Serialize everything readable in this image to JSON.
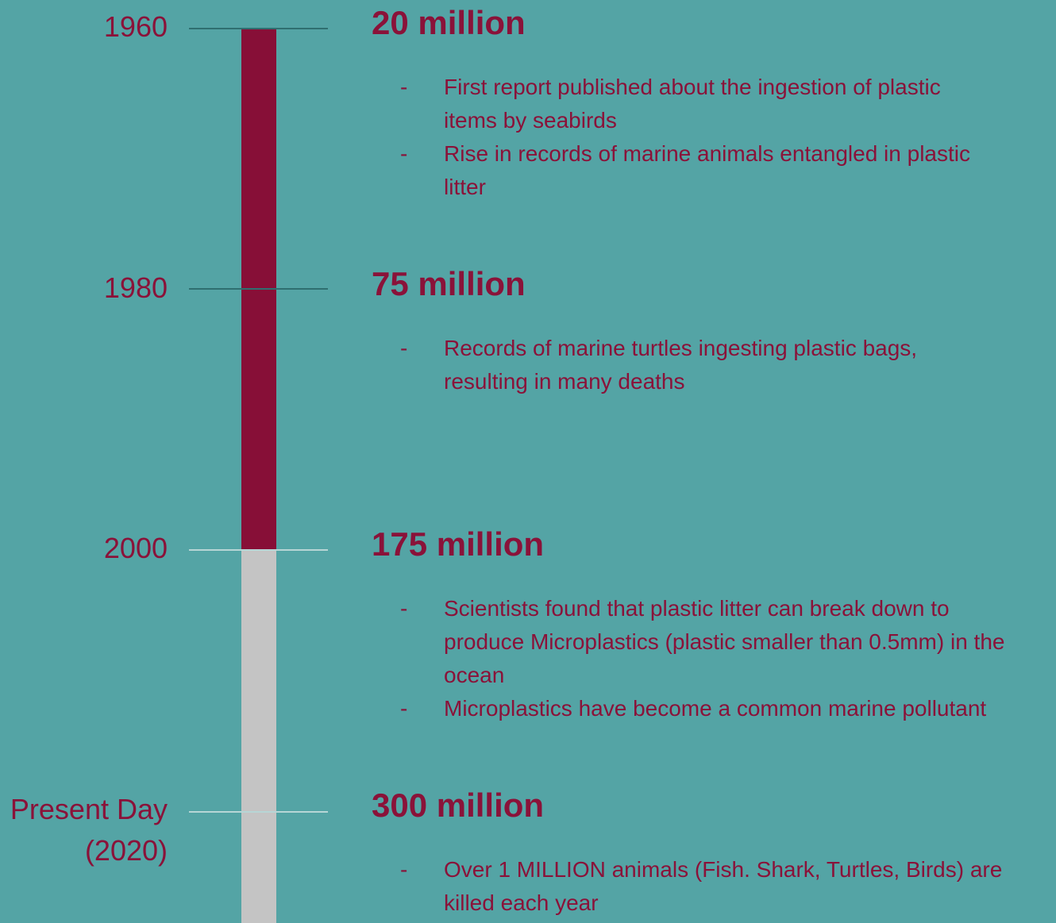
{
  "colors": {
    "background": "#54a4a5",
    "accent": "#870f37",
    "bar_past": "#870f37",
    "bar_present": "#c4c4c4",
    "tick_dark": "#2f6f70",
    "tick_light": "#b7d6d6"
  },
  "timeline": [
    {
      "year": "1960",
      "amount": "20 million",
      "items": [
        "First report published about the ingestion of plastic items by seabirds",
        "Rise in records of marine animals entangled in plastic litter"
      ]
    },
    {
      "year": "1980",
      "amount": "75 million",
      "items": [
        "Records of marine turtles ingesting plastic bags, resulting in many deaths"
      ]
    },
    {
      "year": "2000",
      "amount": "175 million",
      "items": [
        "Scientists found that plastic litter can break down to produce Microplastics (plastic smaller than 0.5mm) in the ocean",
        "Microplastics have become a common marine pollutant"
      ]
    },
    {
      "year": "Present Day (2020)",
      "amount": "300 million",
      "items": [
        "Over 1 MILLION animals (Fish. Shark, Turtles, Birds) are killed each year"
      ]
    }
  ],
  "bullet": "-"
}
